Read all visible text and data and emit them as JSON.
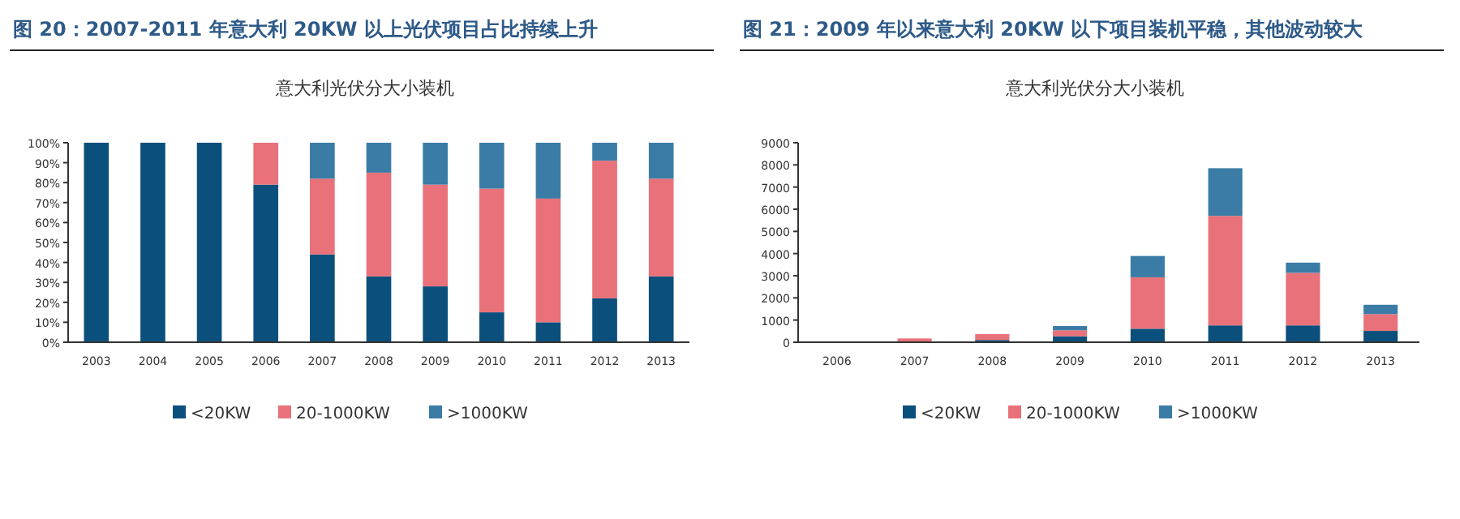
{
  "chart_data": [
    {
      "type": "bar",
      "stacked": true,
      "title": "图 20：2007-2011 年意大利 20KW 以上光伏项目占比持续上升",
      "subtitle": "意大利光伏分大小装机",
      "categories": [
        "2003",
        "2004",
        "2005",
        "2006",
        "2007",
        "2008",
        "2009",
        "2010",
        "2011",
        "2012",
        "2013"
      ],
      "series": [
        {
          "name": "<20KW",
          "color": "#0b4f7c",
          "values": [
            100,
            100,
            100,
            79,
            44,
            33,
            28,
            15,
            10,
            22,
            33
          ]
        },
        {
          "name": "20-1000KW",
          "color": "#e8717a",
          "values": [
            0,
            0,
            0,
            21,
            38,
            52,
            51,
            62,
            62,
            69,
            49
          ]
        },
        {
          "name": ">1000KW",
          "color": "#3a7ca5",
          "values": [
            0,
            0,
            0,
            0,
            18,
            15,
            21,
            23,
            28,
            9,
            18
          ]
        }
      ],
      "ylim": [
        0,
        100
      ],
      "yticks": [
        {
          "value": 0,
          "label": "0%"
        },
        {
          "value": 10,
          "label": "10%"
        },
        {
          "value": 20,
          "label": "20%"
        },
        {
          "value": 30,
          "label": "30%"
        },
        {
          "value": 40,
          "label": "40%"
        },
        {
          "value": 50,
          "label": "50%"
        },
        {
          "value": 60,
          "label": "60%"
        },
        {
          "value": 70,
          "label": "70%"
        },
        {
          "value": 80,
          "label": "80%"
        },
        {
          "value": 90,
          "label": "90%"
        },
        {
          "value": 100,
          "label": "100%"
        }
      ],
      "grid": false,
      "legend": "bottom"
    },
    {
      "type": "bar",
      "stacked": true,
      "title": "图 21：2009 年以来意大利 20KW 以下项目装机平稳，其他波动较大",
      "subtitle": "意大利光伏分大小装机",
      "categories": [
        "2006",
        "2007",
        "2008",
        "2009",
        "2010",
        "2011",
        "2012",
        "2013"
      ],
      "series": [
        {
          "name": "<20KW",
          "color": "#0b4f7c",
          "values": [
            0,
            20,
            100,
            270,
            610,
            760,
            760,
            510
          ]
        },
        {
          "name": "20-1000KW",
          "color": "#e8717a",
          "values": [
            0,
            150,
            270,
            270,
            2320,
            4940,
            2370,
            760
          ]
        },
        {
          "name": ">1000KW",
          "color": "#3a7ca5",
          "values": [
            0,
            0,
            0,
            190,
            960,
            2150,
            460,
            420
          ]
        }
      ],
      "ylim": [
        0,
        9000
      ],
      "yticks": [
        0,
        1000,
        2000,
        3000,
        4000,
        5000,
        6000,
        7000,
        8000,
        9000
      ],
      "grid": false,
      "legend": "bottom"
    }
  ]
}
